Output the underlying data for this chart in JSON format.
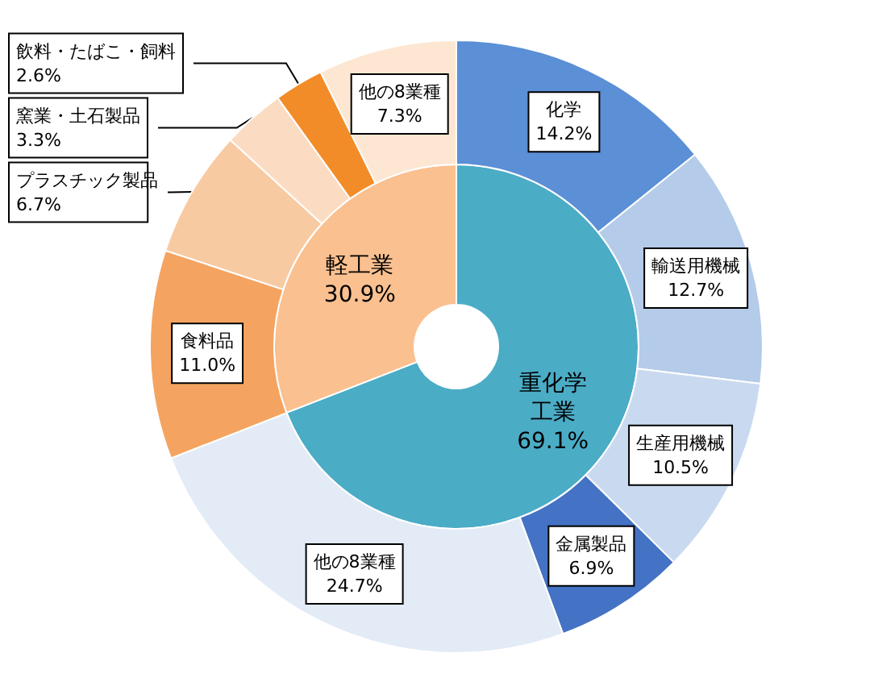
{
  "chart_data": [
    {
      "type": "donut",
      "categories": [
        "重化学工業",
        "軽工業"
      ],
      "values": [
        69.1,
        30.9
      ],
      "colors": [
        "#4bacc6",
        "#fac090"
      ],
      "value_labels": [
        "69.1%",
        "30.9%"
      ]
    },
    {
      "type": "donut",
      "categories": [
        "化学",
        "輸送用機械",
        "生産用機械",
        "金属製品",
        "他の8業種",
        "食料品",
        "プラスチック製品",
        "窯業・土石製品",
        "飲料・たばこ・飼料",
        "他の8業種"
      ],
      "values": [
        14.2,
        12.7,
        10.5,
        6.9,
        24.7,
        11.0,
        6.7,
        3.3,
        2.6,
        7.3
      ],
      "colors": [
        "#5b8fd6",
        "#b4cbe9",
        "#c9daf0",
        "#4472c4",
        "#e2ebf6",
        "#f4a460",
        "#f8caa2",
        "#fbdcc2",
        "#f28c28",
        "#fde7d2"
      ],
      "value_labels": [
        "14.2%",
        "12.7%",
        "10.5%",
        "6.9%",
        "24.7%",
        "11.0%",
        "6.7%",
        "3.3%",
        "2.6%",
        "7.3%"
      ]
    }
  ]
}
